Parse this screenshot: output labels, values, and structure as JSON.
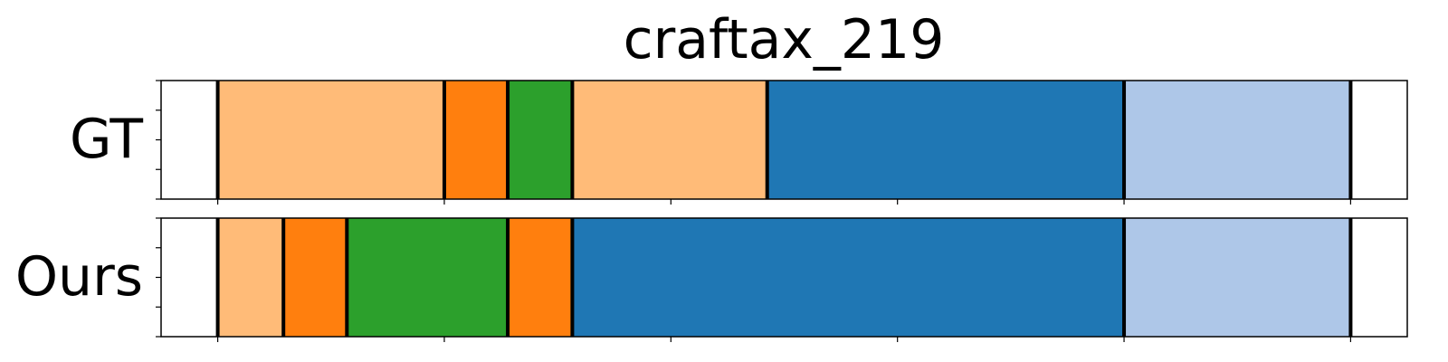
{
  "chart_data": {
    "type": "segmented-timeline",
    "title": "craftax_219",
    "xlim": [
      0,
      110
    ],
    "x_ticks": [
      5,
      25,
      45,
      65,
      85,
      105
    ],
    "y_ticks_per_row": 5,
    "colors": {
      "light-orange": "#ffbb78",
      "orange": "#ff7f0e",
      "green": "#2ca02c",
      "blue": "#1f77b4",
      "light-blue": "#aec7e8",
      "boundary": "#000000"
    },
    "rows": [
      {
        "label": "GT",
        "segments": [
          {
            "start": 5.0,
            "end": 25.0,
            "color": "light-orange"
          },
          {
            "start": 25.0,
            "end": 30.6,
            "color": "orange"
          },
          {
            "start": 30.6,
            "end": 36.3,
            "color": "green"
          },
          {
            "start": 36.3,
            "end": 53.5,
            "color": "light-orange"
          },
          {
            "start": 53.5,
            "end": 85.0,
            "color": "blue"
          },
          {
            "start": 85.0,
            "end": 105.0,
            "color": "light-blue"
          }
        ]
      },
      {
        "label": "Ours",
        "segments": [
          {
            "start": 5.0,
            "end": 10.8,
            "color": "light-orange"
          },
          {
            "start": 10.8,
            "end": 16.4,
            "color": "orange"
          },
          {
            "start": 16.4,
            "end": 30.6,
            "color": "green"
          },
          {
            "start": 30.6,
            "end": 36.3,
            "color": "orange"
          },
          {
            "start": 36.3,
            "end": 85.0,
            "color": "blue"
          },
          {
            "start": 85.0,
            "end": 105.0,
            "color": "light-blue"
          }
        ]
      }
    ]
  }
}
